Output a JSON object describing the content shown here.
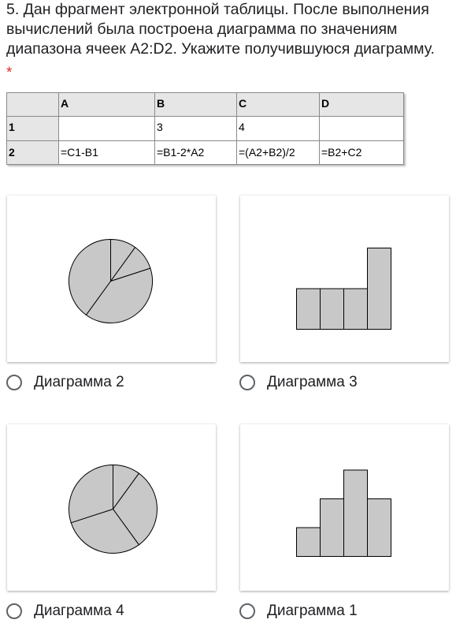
{
  "question": {
    "text": "5. Дан фрагмент электронной таблицы. После выполнения вычислений была построена диаграмма по значениям диапазона ячеек A2:D2. Укажите получившуюся диаграмму.",
    "required_mark": "*"
  },
  "spreadsheet": {
    "header": [
      "",
      "A",
      "B",
      "C",
      "D"
    ],
    "rows": [
      [
        "1",
        "",
        "3",
        "4",
        ""
      ],
      [
        "2",
        "=C1-B1",
        "=B1-2*A2",
        "=(A2+B2)/2",
        "=B2+C2"
      ]
    ]
  },
  "options": [
    {
      "label": "Диаграмма 2"
    },
    {
      "label": "Диаграмма 3"
    },
    {
      "label": "Диаграмма 4"
    },
    {
      "label": "Диаграмма 1"
    }
  ],
  "chart_data": [
    {
      "type": "pie",
      "values": [
        1,
        1,
        4,
        4
      ],
      "fill": "#c8c8c8"
    },
    {
      "type": "bar",
      "categories": [
        "",
        "",
        "",
        ""
      ],
      "values": [
        1,
        1,
        1,
        2
      ],
      "fill": "#c8c8c8"
    },
    {
      "type": "pie",
      "values": [
        1,
        3,
        3,
        3
      ],
      "fill": "#c8c8c8"
    },
    {
      "type": "bar",
      "categories": [
        "",
        "",
        "",
        ""
      ],
      "values": [
        1,
        2,
        3,
        2
      ],
      "fill": "#c8c8c8"
    }
  ]
}
